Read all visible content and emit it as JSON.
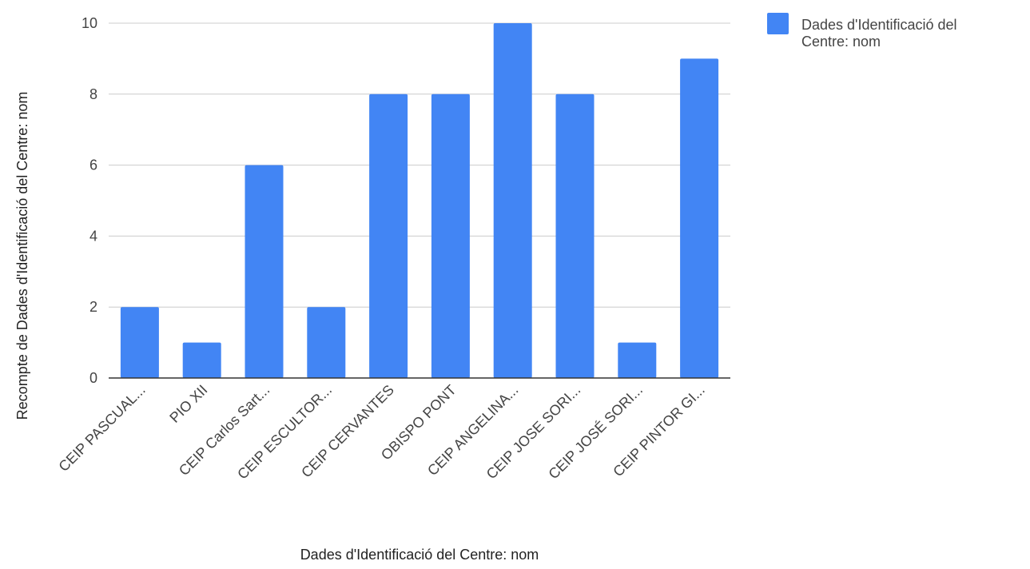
{
  "chart_data": {
    "type": "bar",
    "categories": [
      "CEIP PASCUAL...",
      "PIO XII",
      "CEIP Carlos Sart...",
      "CEIP ESCULTOR...",
      "CEIP CERVANTES",
      "OBISPO PONT",
      "CEIP ANGELINA...",
      "CEIP JOSE SORI...",
      "CEIP JOSÉ SORI...",
      "CEIP PINTOR GI..."
    ],
    "series": [
      {
        "name": "Dades d'Identificació del Centre: nom",
        "values": [
          2,
          1,
          6,
          2,
          8,
          8,
          10,
          8,
          1,
          9
        ]
      }
    ],
    "xlabel": "Dades d'Identificació del Centre: nom",
    "ylabel": "Recompte de Dades d'Identificació del Centre: nom",
    "ylim": [
      0,
      10
    ],
    "yticks": [
      0,
      2,
      4,
      6,
      8,
      10
    ],
    "grid": true,
    "legend_position": "top-right",
    "colors": {
      "bar": "#4285F4",
      "grid": "#cccccc",
      "axis": "#333333"
    }
  },
  "legend": {
    "line1": "Dades d'Identificació del",
    "line2": "Centre: nom"
  }
}
